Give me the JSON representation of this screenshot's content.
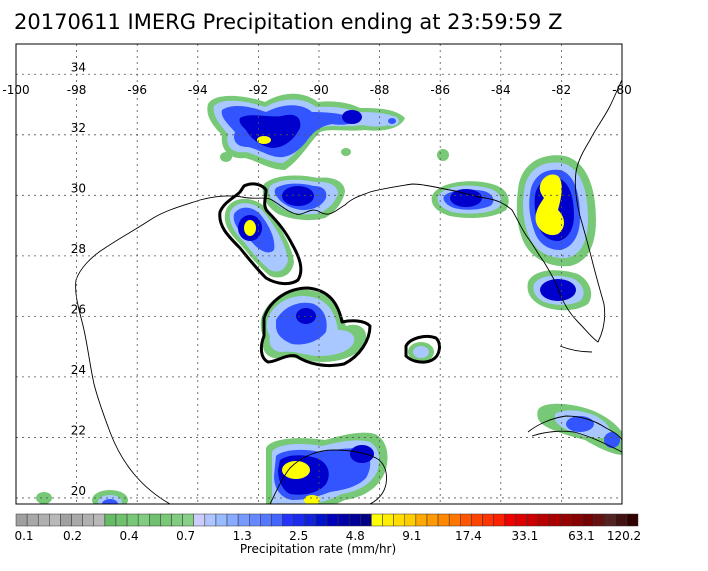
{
  "title": "20170611 IMERG Precipitation ending at 23:59:59 Z",
  "lon_ticks": [
    "-100",
    "-98",
    "-96",
    "-94",
    "-92",
    "-90",
    "-88",
    "-86",
    "-84",
    "-82",
    "-80"
  ],
  "lat_ticks": [
    "34",
    "32",
    "30",
    "28",
    "26",
    "24",
    "22",
    "20"
  ],
  "lon_range": [
    -100,
    -80
  ],
  "lat_range": [
    19.8,
    35
  ],
  "colorbar": {
    "label": "Precipitation rate (mm/hr)",
    "tick_labels": [
      "0.1",
      "0.2",
      "0.4",
      "0.7",
      "1.3",
      "2.5",
      "4.8",
      "9.1",
      "17.4",
      "33.1",
      "63.1",
      "120.2"
    ],
    "colors": [
      "#a0a0a0",
      "#a8a8a8",
      "#b0b0b0",
      "#b8b8b8",
      "#a0a0a0",
      "#a8a8a8",
      "#b0b0b0",
      "#b8b8b8",
      "#66bb66",
      "#70c070",
      "#78c878",
      "#80cc80",
      "#70c070",
      "#78c878",
      "#80cc80",
      "#88d088",
      "#ccccff",
      "#b0c4ff",
      "#99bbff",
      "#88aaff",
      "#7799ff",
      "#6688ff",
      "#5577ff",
      "#4466ff",
      "#2233ff",
      "#1a2aee",
      "#1122dd",
      "#0011cc",
      "#0000bb",
      "#0000aa",
      "#000099",
      "#000088",
      "#ffff00",
      "#ffee00",
      "#ffdd00",
      "#ffcc00",
      "#ffaa00",
      "#ff9900",
      "#ff8800",
      "#ff7700",
      "#ff5500",
      "#ff4400",
      "#ff3300",
      "#ff2200",
      "#ee0000",
      "#dd0000",
      "#cc0000",
      "#bb0000",
      "#aa0000",
      "#990000",
      "#880000",
      "#770000",
      "#661111",
      "#552222",
      "#441111",
      "#330000"
    ]
  },
  "colors": {
    "light_green": "#77c877",
    "light_blue": "#a8c8ff",
    "mid_blue": "#3355ff",
    "dark_blue": "#0000cc",
    "yellow": "#ffff00",
    "contour": "#000000"
  }
}
